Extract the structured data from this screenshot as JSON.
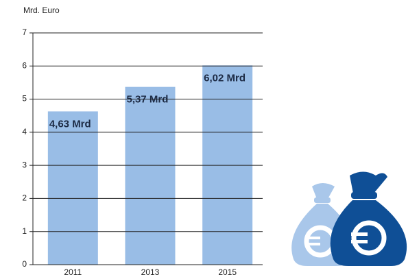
{
  "chart_data": {
    "type": "bar",
    "y_axis_label": "Mrd. Euro",
    "categories": [
      "2011",
      "2013",
      "2015"
    ],
    "values": [
      4.63,
      5.37,
      6.02
    ],
    "value_labels": [
      "4,63 Mrd",
      "5,37 Mrd",
      "6,02 Mrd"
    ],
    "color": "#99bde6",
    "ylim": [
      0,
      7
    ],
    "yticks": [
      0,
      1,
      2,
      3,
      4,
      5,
      6,
      7
    ],
    "grid": true
  }
}
